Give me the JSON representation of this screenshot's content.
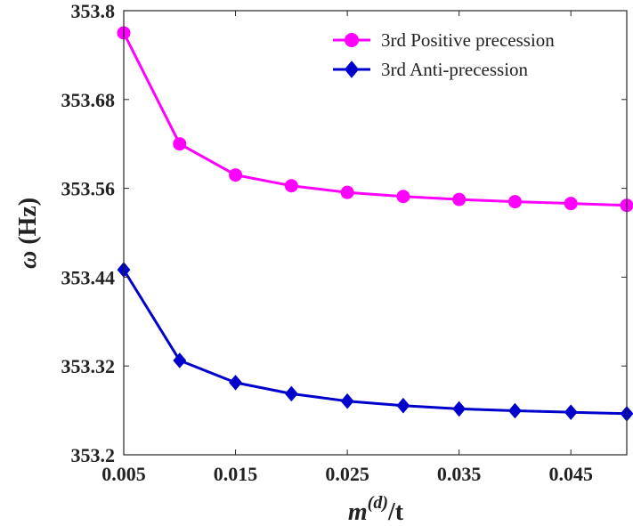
{
  "chart_data": {
    "type": "line",
    "xlabel": {
      "main": "m",
      "superscript": "(d)",
      "suffix": "/t"
    },
    "ylabel": {
      "symbol": "ω",
      "unit": "(Hz)"
    },
    "xlim": [
      0.005,
      0.05
    ],
    "ylim": [
      353.2,
      353.8
    ],
    "x_ticks": [
      "0.005",
      "0.015",
      "0.025",
      "0.035",
      "0.045"
    ],
    "x_tick_values": [
      0.005,
      0.015,
      0.025,
      0.035,
      0.045
    ],
    "y_ticks": [
      "353.2",
      "353.32",
      "353.44",
      "353.56",
      "353.68",
      "353.8"
    ],
    "y_tick_values": [
      353.2,
      353.32,
      353.44,
      353.56,
      353.68,
      353.8
    ],
    "grid": false,
    "legend_position": "top-right",
    "x": [
      0.005,
      0.01,
      0.015,
      0.02,
      0.025,
      0.03,
      0.035,
      0.04,
      0.045,
      0.05
    ],
    "series": [
      {
        "name": "3rd Positive precession",
        "color": "#ff00ff",
        "marker": "circle",
        "values": [
          353.77,
          353.62,
          353.578,
          353.5635,
          353.5545,
          353.549,
          353.545,
          353.542,
          353.5395,
          353.537
        ]
      },
      {
        "name": "3rd Anti-precession",
        "color": "#0000cc",
        "marker": "diamond",
        "values": [
          353.45,
          353.3275,
          353.2975,
          353.2825,
          353.2725,
          353.2665,
          353.262,
          353.2595,
          353.2575,
          353.2555
        ]
      }
    ]
  }
}
